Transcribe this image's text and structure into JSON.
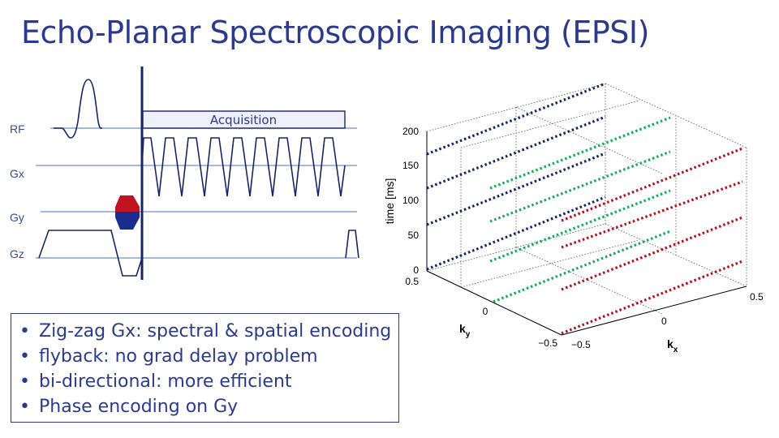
{
  "title": "Echo-Planar Spectroscopic Imaging (EPSI)",
  "sequence": {
    "labels": {
      "rf": "RF",
      "gx": "Gx",
      "gy": "Gy",
      "gz": "Gz"
    },
    "acquisition_label": "Acquisition",
    "colors": {
      "axis": "#8a9ee0",
      "waveform": "#1a2466",
      "blip_top": "#c1121f",
      "blip_bottom": "#1a2d8f",
      "acq_fill": "#eef0fb"
    }
  },
  "plot3d": {
    "ylabel": "time [ms]",
    "kx_label": "k",
    "kx_sub": "x",
    "ky_label": "k",
    "ky_sub": "y",
    "time_ticks": [
      "0",
      "50",
      "100",
      "150",
      "200"
    ],
    "ky_ticks": [
      "0.5",
      "0",
      "−0.5"
    ],
    "kx_ticks": [
      "−0.5",
      "0",
      "0.5"
    ],
    "series_colors": {
      "ky_neg": "#1a2466",
      "ky_mid": "#1aab5a",
      "ky_pos": "#b3121f"
    }
  },
  "bullets": [
    "Zig-zag Gx: spectral & spatial encoding",
    "flyback: no grad delay problem",
    "bi-directional: more efficient",
    "Phase encoding on Gy"
  ]
}
